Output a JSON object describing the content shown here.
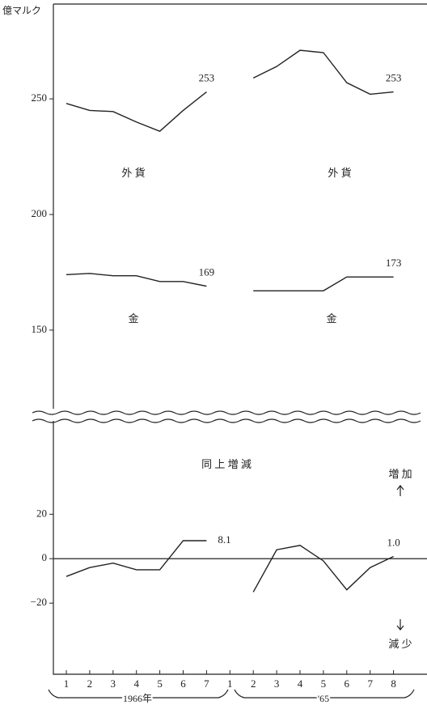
{
  "chart_data": [
    {
      "type": "line",
      "ylabel": "億マルク",
      "ylim": [
        116,
        291
      ],
      "yticks": [
        150,
        200,
        250
      ],
      "color": "#222",
      "series": [
        {
          "name": "外 貨",
          "values": [
            248,
            245,
            244.5,
            240,
            236,
            245,
            253,
            null,
            null,
            null,
            null,
            null,
            null,
            null,
            null
          ],
          "value_labels": [
            null,
            null,
            null,
            null,
            null,
            null,
            "253",
            null,
            null,
            null,
            null,
            null,
            null,
            null,
            null
          ]
        },
        {
          "name": "外 貨",
          "values": [
            null,
            null,
            null,
            null,
            null,
            null,
            null,
            null,
            259,
            264,
            271,
            270,
            257,
            252,
            253
          ],
          "value_labels": [
            null,
            null,
            null,
            null,
            null,
            null,
            null,
            null,
            null,
            null,
            null,
            null,
            null,
            null,
            "253"
          ]
        },
        {
          "name": "金",
          "values": [
            174,
            174.5,
            173.5,
            173.5,
            171,
            171,
            169,
            null,
            null,
            null,
            null,
            null,
            null,
            null,
            null
          ],
          "value_labels": [
            null,
            null,
            null,
            null,
            null,
            null,
            "169",
            null,
            null,
            null,
            null,
            null,
            null,
            null,
            null
          ]
        },
        {
          "name": "金",
          "values": [
            null,
            null,
            null,
            null,
            null,
            null,
            null,
            null,
            167,
            167,
            167,
            167,
            173,
            173,
            173
          ],
          "value_labels": [
            null,
            null,
            null,
            null,
            null,
            null,
            null,
            null,
            null,
            null,
            null,
            null,
            null,
            null,
            "173"
          ]
        }
      ]
    },
    {
      "type": "line",
      "title": "同 上 増 減",
      "ylim": [
        -52,
        62
      ],
      "yticks": [
        20,
        0,
        {
          "value": -20,
          "label": "−20"
        }
      ],
      "color": "#222",
      "annotations": [
        "増 加",
        "減 少"
      ],
      "categories": [
        "1",
        "2",
        "3",
        "4",
        "5",
        "6",
        "7",
        "1",
        "2",
        "3",
        "4",
        "5",
        "6",
        "7",
        "8"
      ],
      "x_groups": [
        "1966年",
        "'65"
      ],
      "series": [
        {
          "values": [
            -8,
            -4,
            -2,
            -5,
            -5,
            8.1,
            8.1,
            null,
            null,
            null,
            null,
            null,
            null,
            null,
            null
          ],
          "value_labels": [
            null,
            null,
            null,
            null,
            null,
            null,
            "8.1",
            null,
            null,
            null,
            null,
            null,
            null,
            null,
            null
          ]
        },
        {
          "values": [
            null,
            null,
            null,
            null,
            null,
            null,
            null,
            null,
            -15,
            4,
            6,
            -1,
            -14,
            -4,
            1
          ],
          "value_labels": [
            null,
            null,
            null,
            null,
            null,
            null,
            null,
            null,
            null,
            null,
            null,
            null,
            null,
            null,
            "1.0"
          ]
        }
      ]
    }
  ]
}
